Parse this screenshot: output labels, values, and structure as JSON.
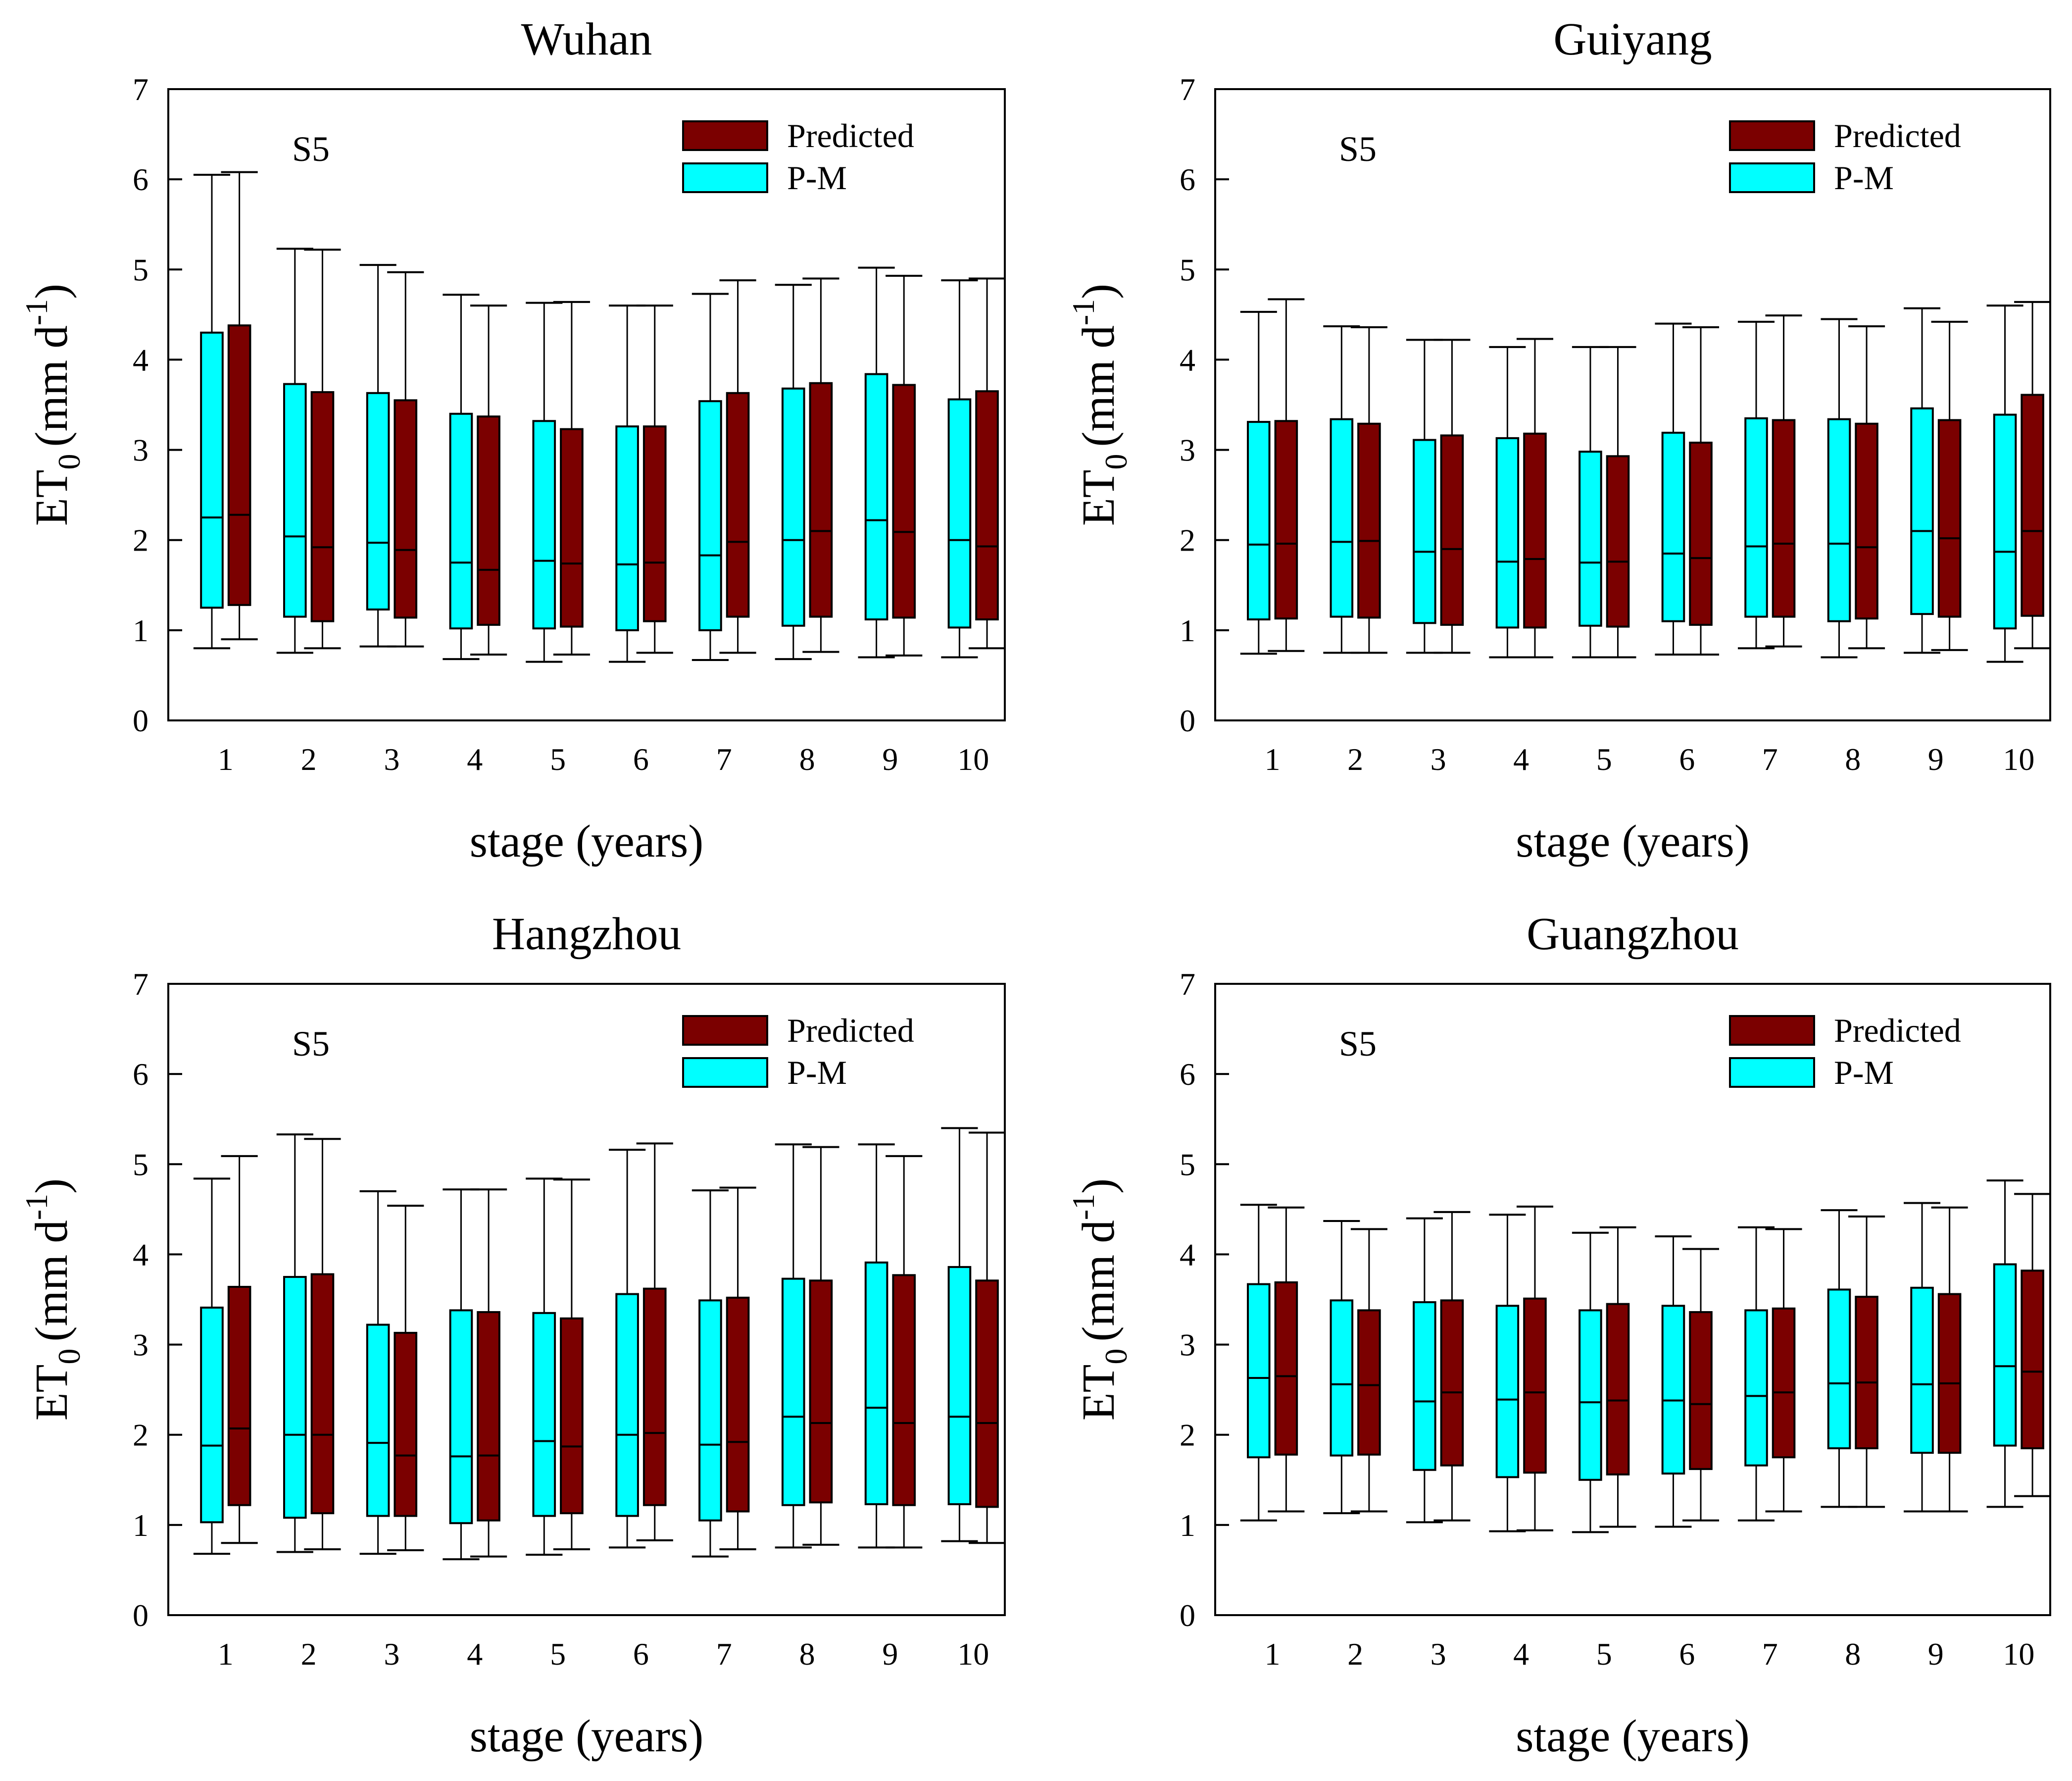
{
  "colors": {
    "predicted": "#7b0000",
    "pm": "#00ffff",
    "axis": "#000000"
  },
  "chart_data": [
    {
      "type": "box",
      "title": "Wuhan",
      "annotation": "S5",
      "xlabel": "stage (years)",
      "ylabel": {
        "main": "ET",
        "sub": "0",
        "units": "(mm d",
        "sup": "-1",
        "close": ")"
      },
      "ylim": [
        0,
        7
      ],
      "yticks": [
        "0",
        "1",
        "2",
        "3",
        "4",
        "5",
        "6",
        "7"
      ],
      "categories": [
        "1",
        "2",
        "3",
        "4",
        "5",
        "6",
        "7",
        "8",
        "9",
        "10"
      ],
      "legend": [
        "Predicted",
        "P-M"
      ],
      "series": [
        {
          "name": "P-M",
          "min": [
            0.8,
            0.75,
            0.82,
            0.68,
            0.65,
            0.65,
            0.67,
            0.68,
            0.7,
            0.7
          ],
          "q1": [
            1.25,
            1.15,
            1.23,
            1.02,
            1.02,
            1.0,
            1.0,
            1.05,
            1.12,
            1.03
          ],
          "median": [
            2.25,
            2.04,
            1.97,
            1.75,
            1.77,
            1.73,
            1.83,
            2.0,
            2.22,
            2.0
          ],
          "q3": [
            4.3,
            3.73,
            3.63,
            3.4,
            3.32,
            3.26,
            3.54,
            3.68,
            3.84,
            3.56
          ],
          "max": [
            6.05,
            5.23,
            5.05,
            4.72,
            4.63,
            4.6,
            4.73,
            4.83,
            5.02,
            4.88
          ]
        },
        {
          "name": "Predicted",
          "min": [
            0.9,
            0.8,
            0.82,
            0.73,
            0.73,
            0.75,
            0.75,
            0.76,
            0.72,
            0.8
          ],
          "q1": [
            1.28,
            1.1,
            1.14,
            1.06,
            1.04,
            1.1,
            1.15,
            1.15,
            1.14,
            1.12
          ],
          "median": [
            2.28,
            1.92,
            1.89,
            1.67,
            1.74,
            1.75,
            1.98,
            2.1,
            2.09,
            1.93
          ],
          "q3": [
            4.38,
            3.64,
            3.55,
            3.37,
            3.23,
            3.26,
            3.63,
            3.74,
            3.72,
            3.65
          ],
          "max": [
            6.08,
            5.22,
            4.97,
            4.6,
            4.64,
            4.6,
            4.88,
            4.9,
            4.93,
            4.9
          ]
        }
      ]
    },
    {
      "type": "box",
      "title": "Guiyang",
      "annotation": "S5",
      "xlabel": "stage (years)",
      "ylabel": {
        "main": "ET",
        "sub": "0",
        "units": "(mm d",
        "sup": "-1",
        "close": ")"
      },
      "ylim": [
        0,
        7
      ],
      "yticks": [
        "0",
        "1",
        "2",
        "3",
        "4",
        "5",
        "6",
        "7"
      ],
      "categories": [
        "1",
        "2",
        "3",
        "4",
        "5",
        "6",
        "7",
        "8",
        "9",
        "10"
      ],
      "legend": [
        "Predicted",
        "P-M"
      ],
      "series": [
        {
          "name": "P-M",
          "min": [
            0.74,
            0.75,
            0.75,
            0.7,
            0.7,
            0.73,
            0.8,
            0.7,
            0.75,
            0.65
          ],
          "q1": [
            1.12,
            1.15,
            1.08,
            1.03,
            1.05,
            1.1,
            1.15,
            1.1,
            1.18,
            1.02
          ],
          "median": [
            1.95,
            1.98,
            1.87,
            1.76,
            1.75,
            1.85,
            1.93,
            1.96,
            2.1,
            1.87
          ],
          "q3": [
            3.31,
            3.34,
            3.11,
            3.13,
            2.98,
            3.19,
            3.35,
            3.34,
            3.46,
            3.39
          ],
          "max": [
            4.53,
            4.37,
            4.22,
            4.14,
            4.14,
            4.4,
            4.42,
            4.45,
            4.57,
            4.6
          ]
        },
        {
          "name": "Predicted",
          "min": [
            0.77,
            0.75,
            0.75,
            0.7,
            0.7,
            0.73,
            0.82,
            0.8,
            0.78,
            0.8
          ],
          "q1": [
            1.13,
            1.14,
            1.06,
            1.03,
            1.04,
            1.06,
            1.15,
            1.13,
            1.15,
            1.16
          ],
          "median": [
            1.96,
            1.99,
            1.9,
            1.79,
            1.76,
            1.8,
            1.96,
            1.92,
            2.02,
            2.1
          ],
          "q3": [
            3.32,
            3.29,
            3.16,
            3.18,
            2.93,
            3.08,
            3.33,
            3.29,
            3.33,
            3.61
          ],
          "max": [
            4.67,
            4.36,
            4.22,
            4.23,
            4.14,
            4.36,
            4.49,
            4.37,
            4.42,
            4.64
          ]
        }
      ]
    },
    {
      "type": "box",
      "title": "Hangzhou",
      "annotation": "S5",
      "xlabel": "stage (years)",
      "ylabel": {
        "main": "ET",
        "sub": "0",
        "units": "(mm d",
        "sup": "-1",
        "close": ")"
      },
      "ylim": [
        0,
        7
      ],
      "yticks": [
        "0",
        "1",
        "2",
        "3",
        "4",
        "5",
        "6",
        "7"
      ],
      "categories": [
        "1",
        "2",
        "3",
        "4",
        "5",
        "6",
        "7",
        "8",
        "9",
        "10"
      ],
      "legend": [
        "Predicted",
        "P-M"
      ],
      "series": [
        {
          "name": "P-M",
          "min": [
            0.68,
            0.7,
            0.68,
            0.62,
            0.67,
            0.75,
            0.65,
            0.75,
            0.75,
            0.82
          ],
          "q1": [
            1.03,
            1.08,
            1.1,
            1.02,
            1.1,
            1.1,
            1.05,
            1.22,
            1.23,
            1.23
          ],
          "median": [
            1.88,
            2.0,
            1.91,
            1.76,
            1.93,
            2.0,
            1.89,
            2.2,
            2.3,
            2.2
          ],
          "q3": [
            3.41,
            3.75,
            3.22,
            3.38,
            3.35,
            3.56,
            3.49,
            3.73,
            3.91,
            3.86
          ],
          "max": [
            4.84,
            5.33,
            4.7,
            4.72,
            4.84,
            5.16,
            4.71,
            5.22,
            5.22,
            5.4
          ]
        },
        {
          "name": "Predicted",
          "min": [
            0.8,
            0.73,
            0.72,
            0.65,
            0.73,
            0.83,
            0.73,
            0.78,
            0.75,
            0.8
          ],
          "q1": [
            1.22,
            1.13,
            1.1,
            1.05,
            1.13,
            1.22,
            1.15,
            1.25,
            1.22,
            1.2
          ],
          "median": [
            2.07,
            2.0,
            1.77,
            1.77,
            1.87,
            2.02,
            1.92,
            2.13,
            2.13,
            2.13
          ],
          "q3": [
            3.64,
            3.78,
            3.13,
            3.36,
            3.29,
            3.62,
            3.52,
            3.71,
            3.77,
            3.71
          ],
          "max": [
            5.09,
            5.28,
            4.54,
            4.72,
            4.83,
            5.23,
            4.74,
            5.19,
            5.09,
            5.35
          ]
        }
      ]
    },
    {
      "type": "box",
      "title": "Guangzhou",
      "annotation": "S5",
      "xlabel": "stage (years)",
      "ylabel": {
        "main": "ET",
        "sub": "0",
        "units": "(mm d",
        "sup": "-1",
        "close": ")"
      },
      "ylim": [
        0,
        7
      ],
      "yticks": [
        "0",
        "1",
        "2",
        "3",
        "4",
        "5",
        "6",
        "7"
      ],
      "categories": [
        "1",
        "2",
        "3",
        "4",
        "5",
        "6",
        "7",
        "8",
        "9",
        "10"
      ],
      "legend": [
        "Predicted",
        "P-M"
      ],
      "series": [
        {
          "name": "P-M",
          "min": [
            1.05,
            1.13,
            1.03,
            0.93,
            0.92,
            0.98,
            1.05,
            1.2,
            1.15,
            1.2
          ],
          "q1": [
            1.75,
            1.77,
            1.61,
            1.53,
            1.5,
            1.57,
            1.66,
            1.85,
            1.8,
            1.88
          ],
          "median": [
            2.63,
            2.56,
            2.37,
            2.39,
            2.36,
            2.38,
            2.43,
            2.57,
            2.56,
            2.76
          ],
          "q3": [
            3.67,
            3.49,
            3.47,
            3.43,
            3.38,
            3.43,
            3.38,
            3.61,
            3.63,
            3.89
          ],
          "max": [
            4.55,
            4.37,
            4.4,
            4.44,
            4.24,
            4.2,
            4.3,
            4.49,
            4.57,
            4.82
          ]
        },
        {
          "name": "Predicted",
          "min": [
            1.15,
            1.15,
            1.05,
            0.94,
            0.98,
            1.05,
            1.15,
            1.2,
            1.15,
            1.32
          ],
          "q1": [
            1.78,
            1.78,
            1.66,
            1.58,
            1.56,
            1.62,
            1.75,
            1.85,
            1.8,
            1.85
          ],
          "median": [
            2.65,
            2.55,
            2.47,
            2.47,
            2.38,
            2.34,
            2.47,
            2.58,
            2.57,
            2.7
          ],
          "q3": [
            3.69,
            3.38,
            3.49,
            3.51,
            3.45,
            3.36,
            3.4,
            3.53,
            3.56,
            3.82
          ],
          "max": [
            4.52,
            4.28,
            4.47,
            4.53,
            4.3,
            4.06,
            4.28,
            4.42,
            4.52,
            4.67
          ]
        }
      ]
    }
  ]
}
